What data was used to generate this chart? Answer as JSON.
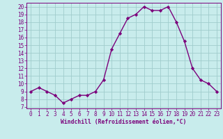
{
  "hours": [
    0,
    1,
    2,
    3,
    4,
    5,
    6,
    7,
    8,
    9,
    10,
    11,
    12,
    13,
    14,
    15,
    16,
    17,
    18,
    19,
    20,
    21,
    22,
    23
  ],
  "values": [
    9.0,
    9.5,
    9.0,
    8.5,
    7.5,
    8.0,
    8.5,
    8.5,
    9.0,
    10.5,
    14.5,
    16.5,
    18.5,
    19.0,
    20.0,
    19.5,
    19.5,
    20.0,
    18.0,
    15.5,
    12.0,
    10.5,
    10.0,
    9.0
  ],
  "line_color": "#7b007b",
  "marker": "D",
  "marker_size": 2.2,
  "line_width": 1.0,
  "bg_color": "#c8ecec",
  "grid_color": "#a0cccc",
  "xlabel": "Windchill (Refroidissement éolien,°C)",
  "ylabel_ticks": [
    7,
    8,
    9,
    10,
    11,
    12,
    13,
    14,
    15,
    16,
    17,
    18,
    19,
    20
  ],
  "ylim": [
    6.8,
    20.5
  ],
  "xlim": [
    -0.5,
    23.5
  ],
  "tick_color": "#7b007b",
  "label_color": "#7b007b",
  "xlabel_fontsize": 5.8,
  "tick_fontsize": 5.5
}
